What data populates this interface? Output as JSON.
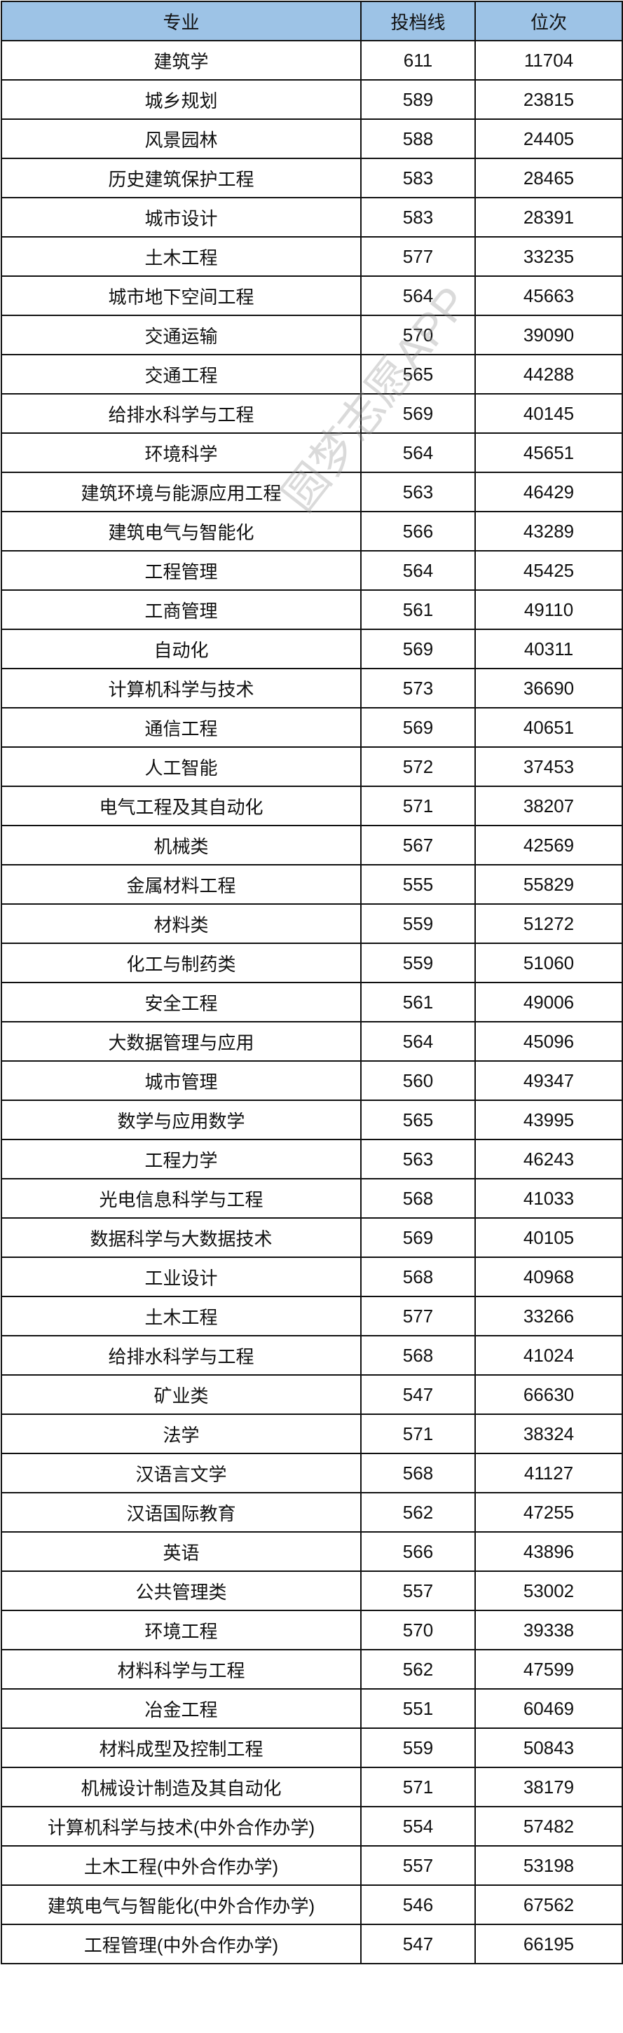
{
  "table": {
    "headers": [
      "专业",
      "投档线",
      "位次"
    ],
    "rows": [
      [
        "建筑学",
        "611",
        "11704"
      ],
      [
        "城乡规划",
        "589",
        "23815"
      ],
      [
        "风景园林",
        "588",
        "24405"
      ],
      [
        "历史建筑保护工程",
        "583",
        "28465"
      ],
      [
        "城市设计",
        "583",
        "28391"
      ],
      [
        "土木工程",
        "577",
        "33235"
      ],
      [
        "城市地下空间工程",
        "564",
        "45663"
      ],
      [
        "交通运输",
        "570",
        "39090"
      ],
      [
        "交通工程",
        "565",
        "44288"
      ],
      [
        "给排水科学与工程",
        "569",
        "40145"
      ],
      [
        "环境科学",
        "564",
        "45651"
      ],
      [
        "建筑环境与能源应用工程",
        "563",
        "46429"
      ],
      [
        "建筑电气与智能化",
        "566",
        "43289"
      ],
      [
        "工程管理",
        "564",
        "45425"
      ],
      [
        "工商管理",
        "561",
        "49110"
      ],
      [
        "自动化",
        "569",
        "40311"
      ],
      [
        "计算机科学与技术",
        "573",
        "36690"
      ],
      [
        "通信工程",
        "569",
        "40651"
      ],
      [
        "人工智能",
        "572",
        "37453"
      ],
      [
        "电气工程及其自动化",
        "571",
        "38207"
      ],
      [
        "机械类",
        "567",
        "42569"
      ],
      [
        "金属材料工程",
        "555",
        "55829"
      ],
      [
        "材料类",
        "559",
        "51272"
      ],
      [
        "化工与制药类",
        "559",
        "51060"
      ],
      [
        "安全工程",
        "561",
        "49006"
      ],
      [
        "大数据管理与应用",
        "564",
        "45096"
      ],
      [
        "城市管理",
        "560",
        "49347"
      ],
      [
        "数学与应用数学",
        "565",
        "43995"
      ],
      [
        "工程力学",
        "563",
        "46243"
      ],
      [
        "光电信息科学与工程",
        "568",
        "41033"
      ],
      [
        "数据科学与大数据技术",
        "569",
        "40105"
      ],
      [
        "工业设计",
        "568",
        "40968"
      ],
      [
        "土木工程",
        "577",
        "33266"
      ],
      [
        "给排水科学与工程",
        "568",
        "41024"
      ],
      [
        "矿业类",
        "547",
        "66630"
      ],
      [
        "法学",
        "571",
        "38324"
      ],
      [
        "汉语言文学",
        "568",
        "41127"
      ],
      [
        "汉语国际教育",
        "562",
        "47255"
      ],
      [
        "英语",
        "566",
        "43896"
      ],
      [
        "公共管理类",
        "557",
        "53002"
      ],
      [
        "环境工程",
        "570",
        "39338"
      ],
      [
        "材料科学与工程",
        "562",
        "47599"
      ],
      [
        "冶金工程",
        "551",
        "60469"
      ],
      [
        "材料成型及控制工程",
        "559",
        "50843"
      ],
      [
        "机械设计制造及其自动化",
        "571",
        "38179"
      ],
      [
        "计算机科学与技术(中外合作办学)",
        "554",
        "57482"
      ],
      [
        "土木工程(中外合作办学)",
        "557",
        "53198"
      ],
      [
        "建筑电气与智能化(中外合作办学)",
        "546",
        "67562"
      ],
      [
        "工程管理(中外合作办学)",
        "547",
        "66195"
      ]
    ]
  },
  "watermark": "圆梦志愿APP",
  "colors": {
    "header_bg": "#9DC3E6"
  }
}
